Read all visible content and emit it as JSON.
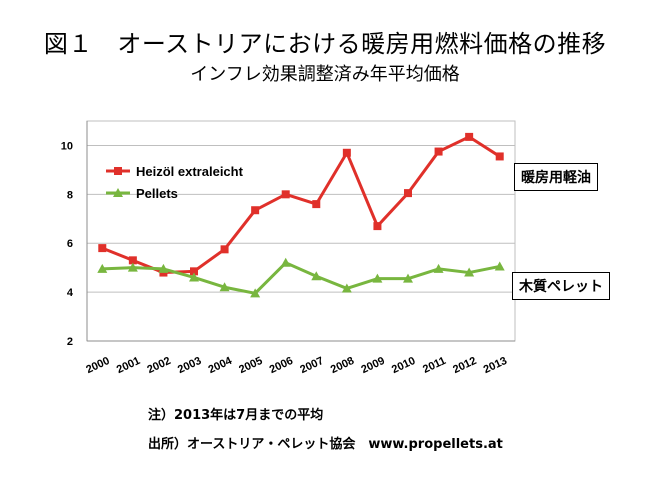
{
  "header": {
    "title": "図１　オーストリアにおける暖房用燃料価格の推移",
    "subtitle": "インフレ効果調整済み年平均価格"
  },
  "notes": {
    "note1": "注）2013年は7月までの平均",
    "note2": "出所）オーストリア・ペレット協会　www.propellets.at"
  },
  "labels": {
    "oil": "暖房用軽油",
    "pellet": "木質ペレット"
  },
  "colors": {
    "heizoel": "#e0302a",
    "pellets": "#78b63f",
    "grid": "#bfbfbf"
  },
  "chart_data": {
    "type": "line",
    "categories": [
      "2000",
      "2001",
      "2002",
      "2003",
      "2004",
      "2005",
      "2006",
      "2007",
      "2008",
      "2009",
      "2010",
      "2011",
      "2012",
      "2013"
    ],
    "series": [
      {
        "name": "Heizöl extraleicht",
        "values": [
          5.8,
          5.3,
          4.8,
          4.85,
          5.75,
          7.35,
          8.0,
          7.6,
          9.7,
          6.7,
          8.05,
          9.75,
          10.35,
          9.55
        ]
      },
      {
        "name": "Pellets",
        "values": [
          4.95,
          5.0,
          4.95,
          4.6,
          4.2,
          3.95,
          5.2,
          4.65,
          4.15,
          4.55,
          4.55,
          4.95,
          4.8,
          5.05
        ]
      }
    ],
    "yticks": [
      2,
      4,
      6,
      8,
      10
    ],
    "ylim": [
      2,
      11
    ],
    "grid": true,
    "legend_position": "top-left"
  }
}
